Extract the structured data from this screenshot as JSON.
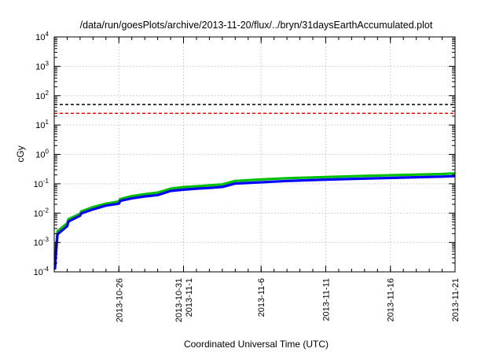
{
  "chart_data": {
    "type": "line",
    "title": "/data/run/goesPlots/archive/2013-11-20/flux/../bryn/31daysEarthAccumulated.plot",
    "xlabel": "Coordinated Universal Time (UTC)",
    "ylabel": "cGy",
    "x_range": [
      "2013-10-21",
      "2013-11-21"
    ],
    "y_scale": "log",
    "ylim": [
      0.0001,
      10000
    ],
    "grid": true,
    "y_ticks": [
      {
        "base": "10",
        "exp": "-4",
        "value": 0.0001
      },
      {
        "base": "10",
        "exp": "-3",
        "value": 0.001
      },
      {
        "base": "10",
        "exp": "-2",
        "value": 0.01
      },
      {
        "base": "10",
        "exp": "-1",
        "value": 0.1
      },
      {
        "base": "10",
        "exp": "0",
        "value": 1
      },
      {
        "base": "10",
        "exp": "1",
        "value": 10
      },
      {
        "base": "10",
        "exp": "2",
        "value": 100
      },
      {
        "base": "10",
        "exp": "3",
        "value": 1000
      },
      {
        "base": "10",
        "exp": "4",
        "value": 10000
      }
    ],
    "x_ticks": [
      {
        "date": "2013-10-26",
        "lines": [
          "2013-10-26"
        ]
      },
      {
        "date": "2013-10-31",
        "lines": [
          "2013-10-31",
          "2013-11-1"
        ]
      },
      {
        "date": "2013-11-06",
        "lines": [
          "2013-11-6"
        ]
      },
      {
        "date": "2013-11-11",
        "lines": [
          "2013-11-11"
        ]
      },
      {
        "date": "2013-11-16",
        "lines": [
          "2013-11-16"
        ]
      },
      {
        "date": "2013-11-21",
        "lines": [
          "2013-11-21"
        ]
      }
    ],
    "reference_lines": [
      {
        "value": 50,
        "color": "#000000",
        "style": "dashed"
      },
      {
        "value": 25,
        "color": "#ff0000",
        "style": "dashed"
      }
    ],
    "series": [
      {
        "color": "#00c000",
        "x": [
          "2013-10-21",
          "2013-10-21",
          "2013-10-21",
          "2013-10-22",
          "2013-10-22",
          "2013-10-23",
          "2013-10-23",
          "2013-10-24",
          "2013-10-25",
          "2013-10-26",
          "2013-10-26",
          "2013-10-27",
          "2013-10-28",
          "2013-10-29",
          "2013-10-30",
          "2013-10-31",
          "2013-11-01",
          "2013-11-02",
          "2013-11-03",
          "2013-11-04",
          "2013-11-06",
          "2013-11-08",
          "2013-11-11",
          "2013-11-14",
          "2013-11-17",
          "2013-11-20",
          "2013-11-21"
        ],
        "y": [
          0.00018,
          0.0008,
          0.0024,
          0.0045,
          0.0062,
          0.0095,
          0.0115,
          0.016,
          0.021,
          0.025,
          0.03,
          0.038,
          0.044,
          0.05,
          0.068,
          0.077,
          0.082,
          0.088,
          0.095,
          0.125,
          0.14,
          0.155,
          0.17,
          0.185,
          0.2,
          0.215,
          0.225
        ]
      },
      {
        "color": "#0000ff",
        "x": [
          "2013-10-21",
          "2013-10-21",
          "2013-10-21",
          "2013-10-22",
          "2013-10-22",
          "2013-10-23",
          "2013-10-23",
          "2013-10-24",
          "2013-10-25",
          "2013-10-26",
          "2013-10-26",
          "2013-10-27",
          "2013-10-28",
          "2013-10-29",
          "2013-10-30",
          "2013-10-31",
          "2013-11-01",
          "2013-11-02",
          "2013-11-03",
          "2013-11-04",
          "2013-11-06",
          "2013-11-08",
          "2013-11-11",
          "2013-11-14",
          "2013-11-17",
          "2013-11-20",
          "2013-11-21"
        ],
        "y": [
          0.00013,
          0.0006,
          0.0019,
          0.0036,
          0.0052,
          0.0082,
          0.0098,
          0.0135,
          0.018,
          0.021,
          0.026,
          0.032,
          0.037,
          0.041,
          0.057,
          0.063,
          0.068,
          0.072,
          0.078,
          0.102,
          0.112,
          0.125,
          0.138,
          0.15,
          0.162,
          0.175,
          0.182
        ]
      }
    ]
  }
}
